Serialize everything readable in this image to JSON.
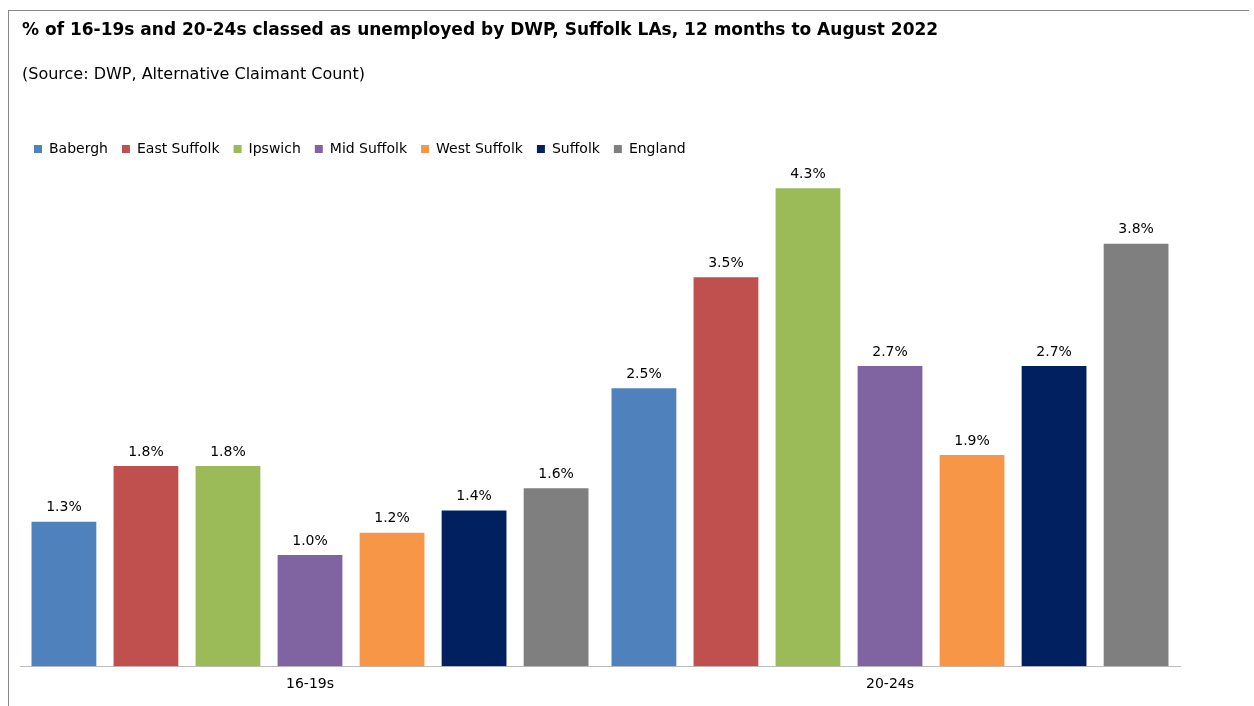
{
  "chart_data": {
    "type": "bar",
    "title": "% of 16-19s and 20-24s classed as unemployed by DWP, Suffolk LAs,  12 months to August 2022",
    "subtitle": "(Source: DWP, Alternative Claimant Count)",
    "categories": [
      "16-19s",
      "20-24s"
    ],
    "series": [
      {
        "name": "Babergh",
        "color": "#4f81bd",
        "values": [
          1.3,
          2.5
        ],
        "value_labels": [
          "1.3%",
          "2.5%"
        ]
      },
      {
        "name": "East Suffolk",
        "color": "#c0504d",
        "values": [
          1.8,
          3.5
        ],
        "value_labels": [
          "1.8%",
          "3.5%"
        ]
      },
      {
        "name": "Ipswich",
        "color": "#9bbb59",
        "values": [
          1.8,
          4.3
        ],
        "value_labels": [
          "1.8%",
          "4.3%"
        ]
      },
      {
        "name": "Mid Suffolk",
        "color": "#8064a2",
        "values": [
          1.0,
          2.7
        ],
        "value_labels": [
          "1.0%",
          "2.7%"
        ]
      },
      {
        "name": "West Suffolk",
        "color": "#f79646",
        "values": [
          1.2,
          1.9
        ],
        "value_labels": [
          "1.2%",
          "1.9%"
        ]
      },
      {
        "name": "Suffolk",
        "color": "#002060",
        "values": [
          1.4,
          2.7
        ],
        "value_labels": [
          "1.4%",
          "2.7%"
        ]
      },
      {
        "name": "England",
        "color": "#7f7f7f",
        "values": [
          1.6,
          3.8
        ],
        "value_labels": [
          "1.6%",
          "3.8%"
        ]
      }
    ],
    "legend": "top",
    "grid": false
  }
}
